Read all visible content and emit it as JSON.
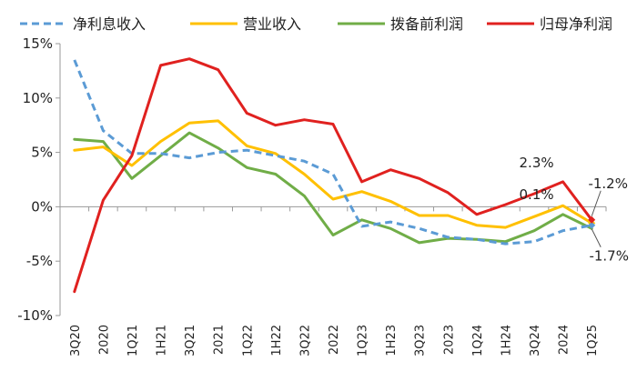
{
  "chart_data": {
    "type": "line",
    "categories": [
      "3Q20",
      "2020",
      "1Q21",
      "1H21",
      "3Q21",
      "2021",
      "1Q22",
      "1H22",
      "3Q22",
      "2022",
      "1Q23",
      "1H23",
      "3Q23",
      "2023",
      "1Q24",
      "1H24",
      "3Q24",
      "2024",
      "1Q25"
    ],
    "ylim": [
      -10,
      15
    ],
    "yticks": [
      -10,
      -5,
      0,
      5,
      10,
      15
    ],
    "ytick_labels": [
      "-10%",
      "-5%",
      "0%",
      "5%",
      "10%",
      "15%"
    ],
    "grid": false,
    "legend": "top",
    "series": [
      {
        "name": "净利息收入",
        "color": "#5b9bd5",
        "dash": true,
        "values": [
          13.5,
          7.0,
          4.9,
          4.9,
          4.5,
          5.0,
          5.2,
          4.7,
          4.2,
          3.0,
          -1.8,
          -1.4,
          -2.0,
          -2.8,
          -3.0,
          -3.4,
          -3.2,
          -2.2,
          -1.7
        ]
      },
      {
        "name": "营业收入",
        "color": "#ffc000",
        "dash": false,
        "values": [
          5.2,
          5.5,
          3.8,
          6.0,
          7.7,
          7.9,
          5.6,
          4.9,
          3.0,
          0.7,
          1.4,
          0.5,
          -0.8,
          -0.8,
          -1.7,
          -1.9,
          -0.9,
          0.1,
          -1.5
        ]
      },
      {
        "name": "拨备前利润",
        "color": "#70ad47",
        "dash": false,
        "values": [
          6.2,
          6.0,
          2.6,
          4.7,
          6.8,
          5.4,
          3.6,
          3.0,
          1.0,
          -2.6,
          -1.2,
          -2.0,
          -3.3,
          -2.9,
          -3.0,
          -3.2,
          -2.2,
          -0.7,
          -2.0
        ]
      },
      {
        "name": "归母净利润",
        "color": "#e0211f",
        "dash": false,
        "values": [
          -7.8,
          0.6,
          4.7,
          13.0,
          13.6,
          12.6,
          8.6,
          7.5,
          8.0,
          7.6,
          2.3,
          3.4,
          2.6,
          1.3,
          -0.7,
          0.2,
          1.2,
          2.3,
          -1.2
        ]
      }
    ],
    "annotations": [
      {
        "text": "2.3%",
        "series": 3,
        "index": 17
      },
      {
        "text": "0.1%",
        "series": 1,
        "index": 17
      },
      {
        "text": "-1.2%",
        "series": 3,
        "index": 18
      },
      {
        "text": "-1.7%",
        "series": 0,
        "index": 18
      }
    ]
  }
}
